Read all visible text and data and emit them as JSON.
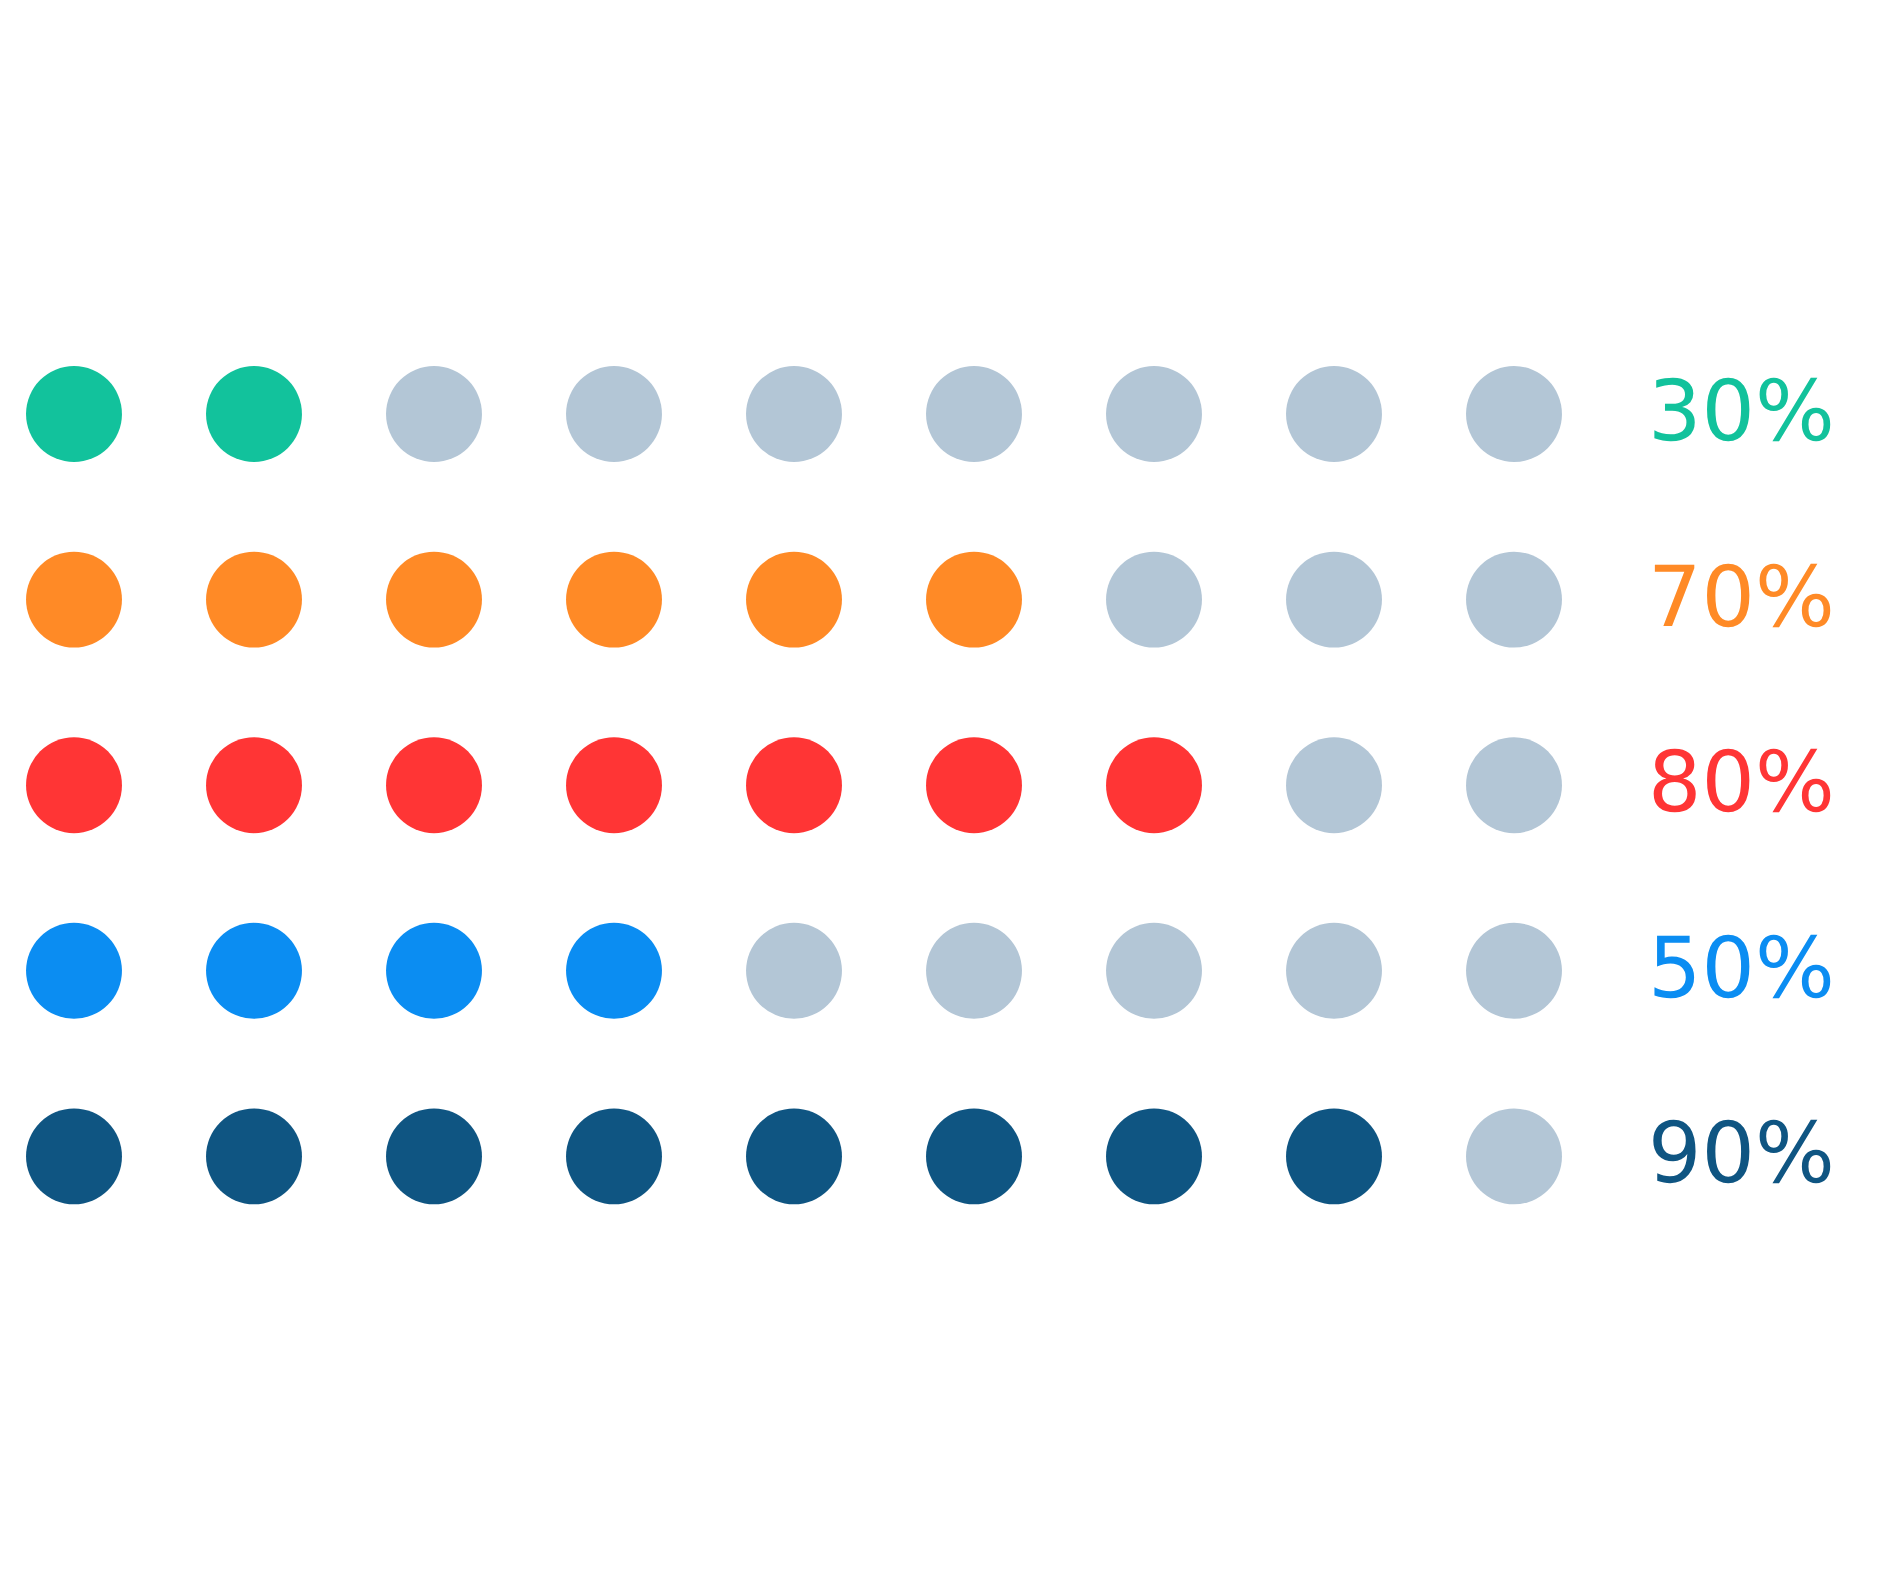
{
  "chart_data": {
    "type": "other",
    "categories": [
      null,
      null,
      null,
      null,
      null
    ],
    "values": [
      30,
      70,
      80,
      50,
      90
    ],
    "value_labels": [
      "30%",
      "70%",
      "80%",
      "50%",
      "90%"
    ],
    "colors": [
      "#12c29c",
      "#ff8a26",
      "#ff3535",
      "#0b8df2",
      "#0f5582"
    ]
  }
}
